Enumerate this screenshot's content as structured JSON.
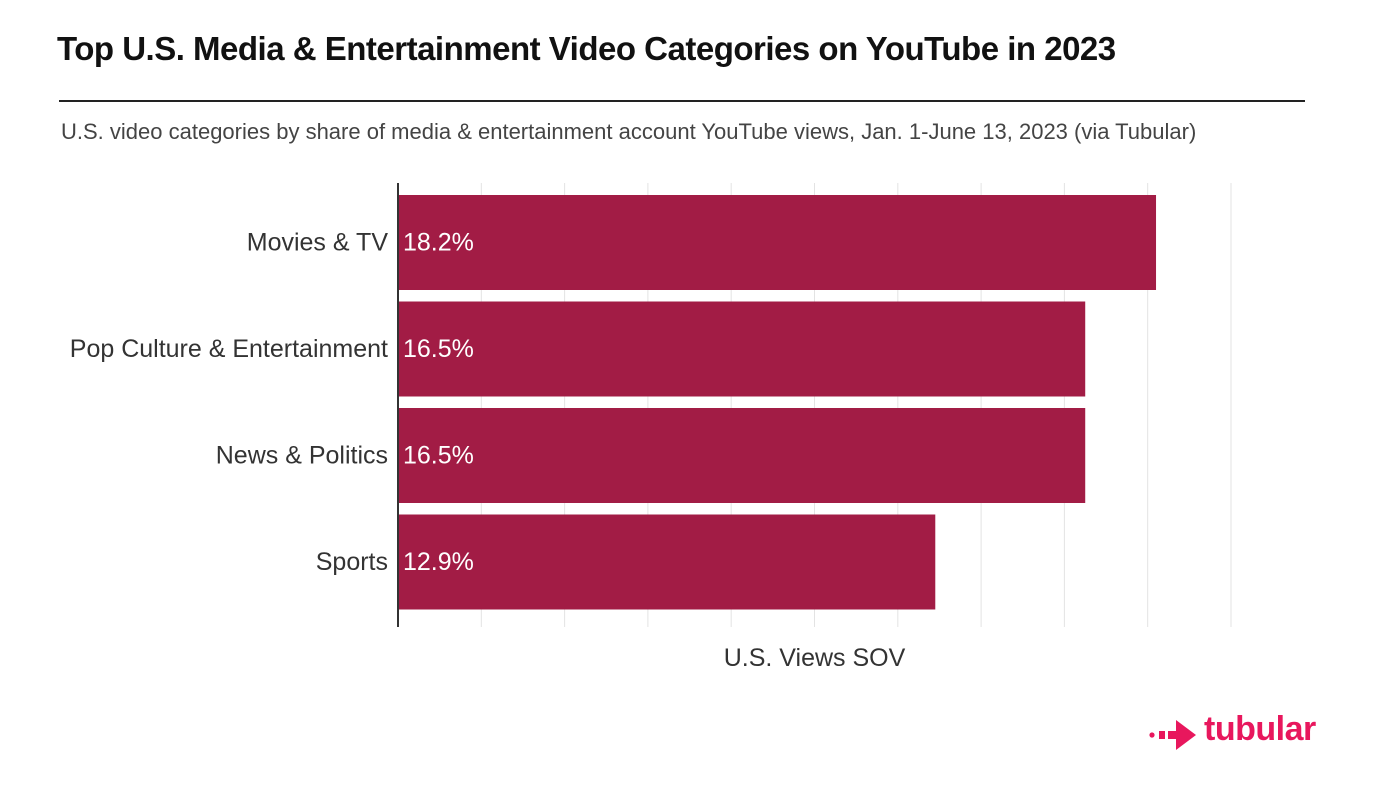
{
  "header": {
    "title": "Top U.S. Media & Entertainment Video Categories on YouTube in 2023",
    "subtitle": "U.S. video categories by share of media & entertainment account YouTube views, Jan. 1-June 13, 2023 (via Tubular)"
  },
  "brand": {
    "name": "tubular",
    "icon": "tubular-arrow-logo",
    "color": "#e8175d"
  },
  "chart_data": {
    "type": "bar",
    "orientation": "horizontal",
    "categories": [
      "Movies & TV",
      "Pop Culture & Entertainment",
      "News & Politics",
      "Sports"
    ],
    "values": [
      18.2,
      16.5,
      16.5,
      12.9
    ],
    "value_labels": [
      "18.2%",
      "16.5%",
      "16.5%",
      "12.9%"
    ],
    "xlabel": "U.S. Views SOV",
    "ylabel": "",
    "xlim": [
      0,
      20
    ],
    "grid": true,
    "bar_color": "#a21c45"
  }
}
